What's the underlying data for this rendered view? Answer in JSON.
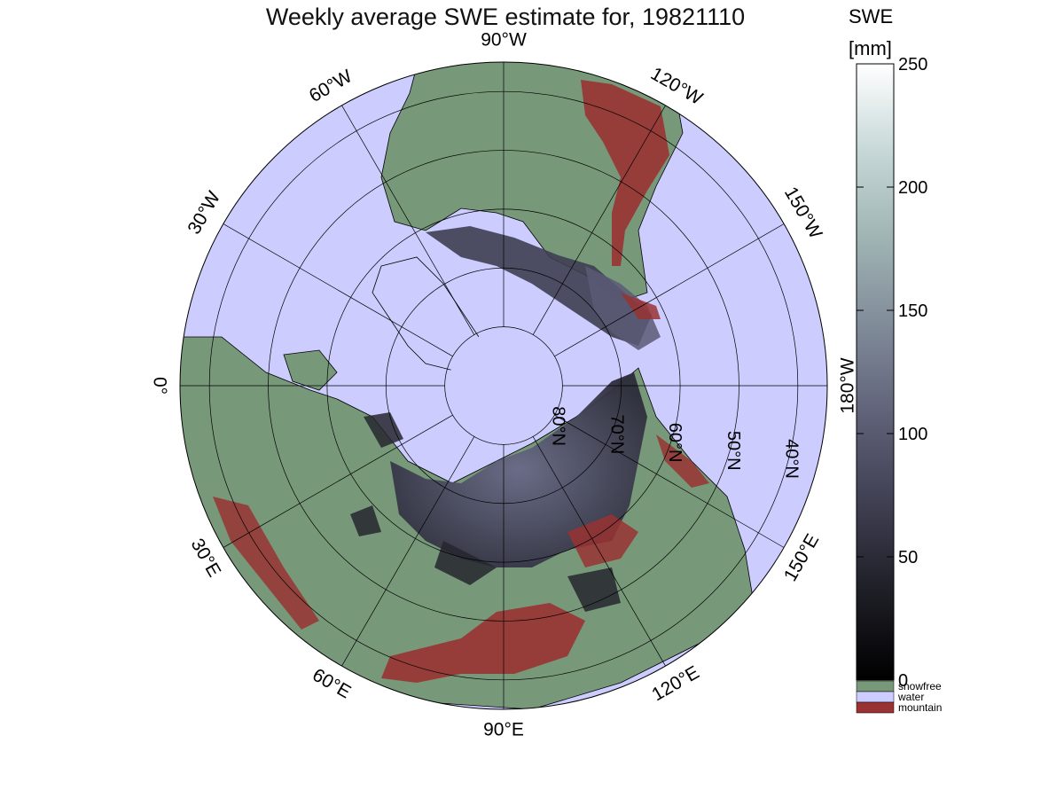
{
  "title": "Weekly average SWE estimate for, 19821110",
  "map": {
    "projection": "north-polar-stereographic",
    "latitude_circles": [
      {
        "label": "80°N",
        "lat": 80
      },
      {
        "label": "70°N",
        "lat": 70
      },
      {
        "label": "60°N",
        "lat": 60
      },
      {
        "label": "50°N",
        "lat": 50
      },
      {
        "label": "40°N",
        "lat": 40
      }
    ],
    "meridian_labels": [
      {
        "label": "90°W",
        "lon": -90
      },
      {
        "label": "120°W",
        "lon": -120
      },
      {
        "label": "150°W",
        "lon": -150
      },
      {
        "label": "180°W",
        "lon": 180
      },
      {
        "label": "150°E",
        "lon": 150
      },
      {
        "label": "120°E",
        "lon": 120
      },
      {
        "label": "90°E",
        "lon": 90
      },
      {
        "label": "60°E",
        "lon": 60
      },
      {
        "label": "30°E",
        "lon": 30
      },
      {
        "label": "0°",
        "lon": 0
      },
      {
        "label": "30°W",
        "lon": -30
      },
      {
        "label": "60°W",
        "lon": -60
      }
    ],
    "colors": {
      "ocean": "#ccccff",
      "snowfree": "#77997a",
      "mountain": "#993333",
      "snow_dark": "#3a3a4c",
      "snow_light": "#6a6a88",
      "coast": "#000000"
    }
  },
  "colorbar": {
    "title": "SWE",
    "unit": "[mm]",
    "min": 0,
    "max": 250,
    "ticks": [
      "0",
      "50",
      "100",
      "150",
      "200",
      "250"
    ],
    "gradient": [
      "#000000",
      "#1e1e26",
      "#3f3f52",
      "#5f6178",
      "#7f8a98",
      "#9fb3b3",
      "#c6d7d7",
      "#ffffff"
    ]
  },
  "legend": [
    {
      "label": "snowfree",
      "color": "#77997a"
    },
    {
      "label": "water",
      "color": "#ccccff"
    },
    {
      "label": "mountain",
      "color": "#993333"
    }
  ]
}
